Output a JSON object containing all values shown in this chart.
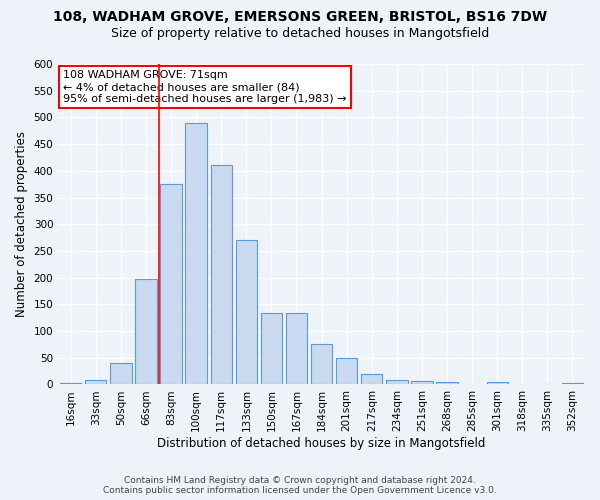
{
  "title1": "108, WADHAM GROVE, EMERSONS GREEN, BRISTOL, BS16 7DW",
  "title2": "Size of property relative to detached houses in Mangotsfield",
  "xlabel": "Distribution of detached houses by size in Mangotsfield",
  "ylabel": "Number of detached properties",
  "annotation_line1": "108 WADHAM GROVE: 71sqm",
  "annotation_line2": "← 4% of detached houses are smaller (84)",
  "annotation_line3": "95% of semi-detached houses are larger (1,983) →",
  "footer1": "Contains HM Land Registry data © Crown copyright and database right 2024.",
  "footer2": "Contains public sector information licensed under the Open Government Licence v3.0.",
  "bar_labels": [
    "16sqm",
    "33sqm",
    "50sqm",
    "66sqm",
    "83sqm",
    "100sqm",
    "117sqm",
    "133sqm",
    "150sqm",
    "167sqm",
    "184sqm",
    "201sqm",
    "217sqm",
    "234sqm",
    "251sqm",
    "268sqm",
    "285sqm",
    "301sqm",
    "318sqm",
    "335sqm",
    "352sqm"
  ],
  "bar_values": [
    3,
    9,
    41,
    197,
    375,
    490,
    410,
    270,
    133,
    133,
    75,
    50,
    20,
    9,
    6,
    4,
    0,
    4,
    0,
    0,
    2
  ],
  "bar_color": "#c9d9ef",
  "bar_edge_color": "#5b9bd5",
  "vline_x_index": 3.5,
  "vline_color": "red",
  "ylim": [
    0,
    600
  ],
  "yticks": [
    0,
    50,
    100,
    150,
    200,
    250,
    300,
    350,
    400,
    450,
    500,
    550,
    600
  ],
  "annotation_box_color": "white",
  "annotation_box_edge_color": "red",
  "bg_color": "#eef2f9",
  "grid_color": "white",
  "title1_fontsize": 10,
  "title2_fontsize": 9,
  "xlabel_fontsize": 8.5,
  "ylabel_fontsize": 8.5,
  "tick_fontsize": 7.5,
  "annotation_fontsize": 8,
  "footer_fontsize": 6.5
}
